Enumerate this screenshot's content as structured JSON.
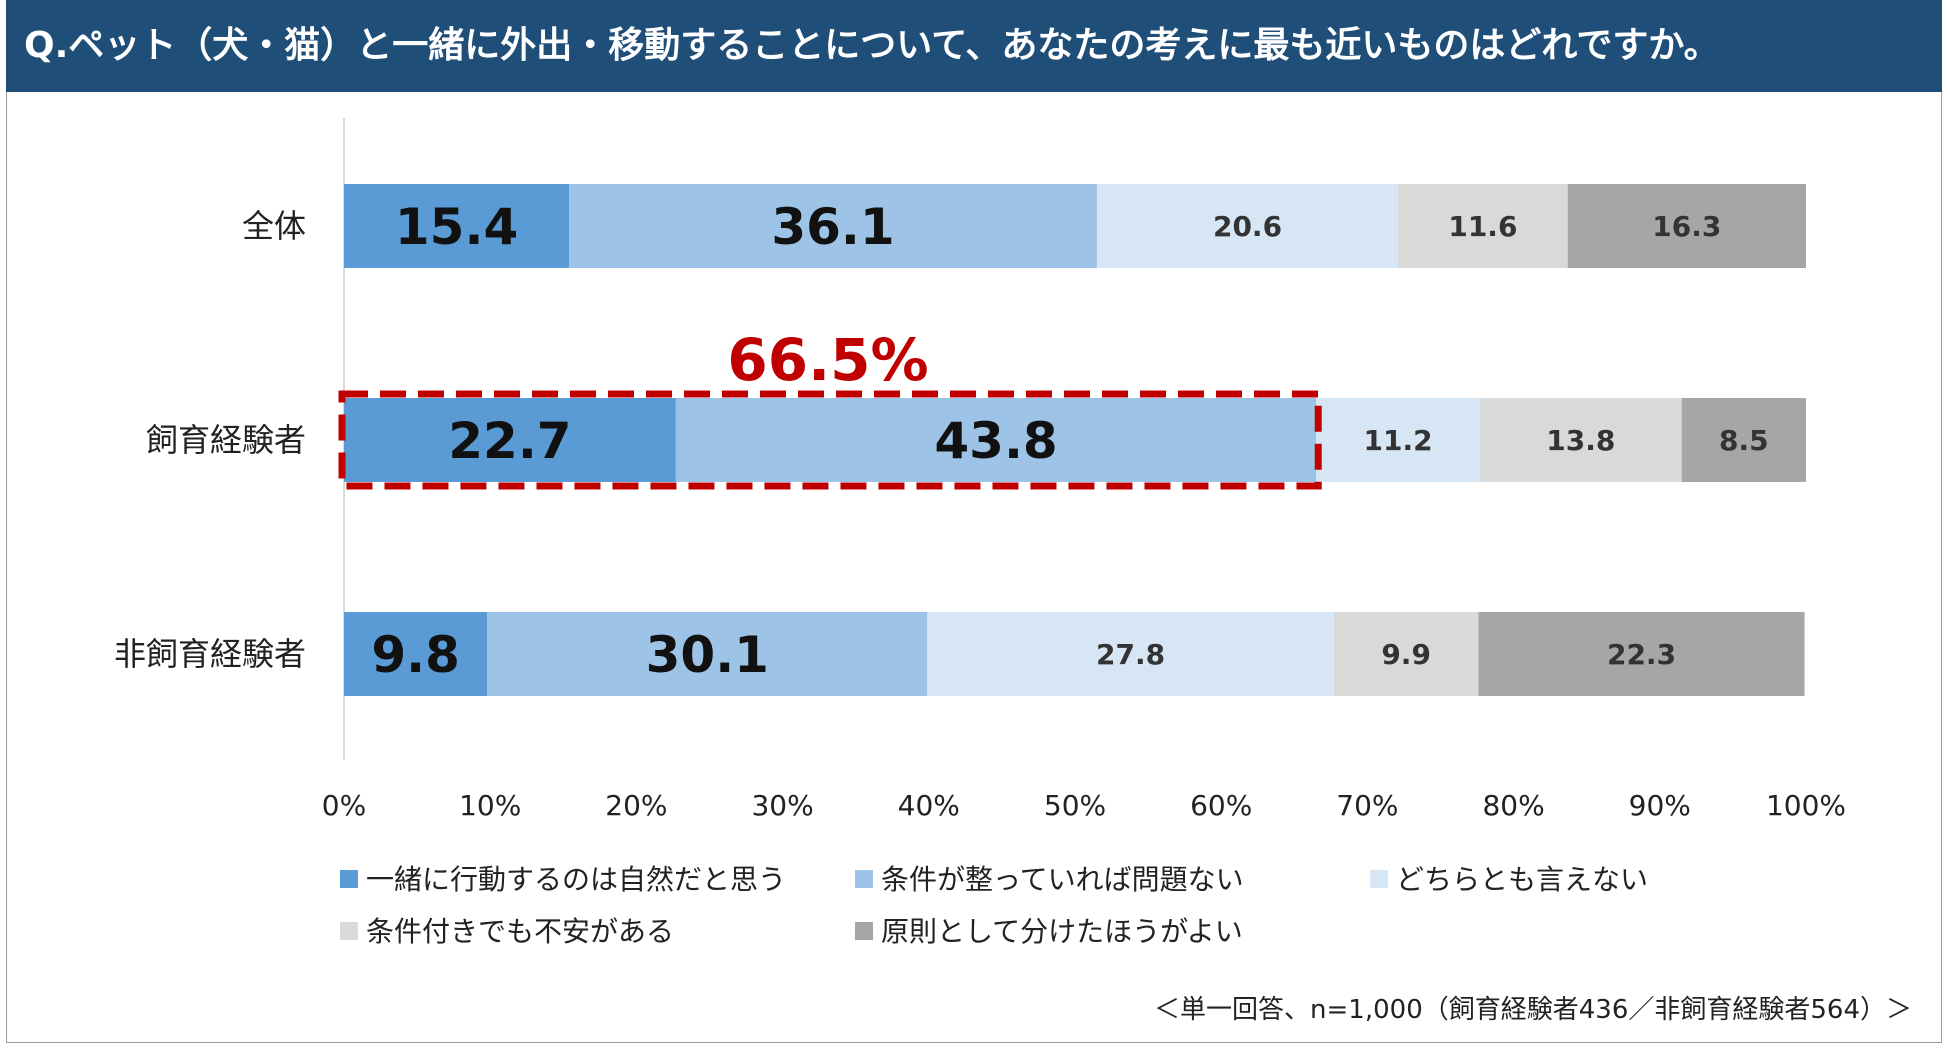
{
  "header": {
    "title": "Q.ペット（犬・猫）と一緒に外出・移動することについて、あなたの考えに最も近いものはどれですか。"
  },
  "chart_data": {
    "type": "bar",
    "orientation": "horizontal",
    "stacked": "percent",
    "categories": [
      "全体",
      "飼育経験者",
      "非飼育経験者"
    ],
    "series": [
      {
        "name": "一緒に行動するのは自然だと思う",
        "color": "#5b9bd5",
        "values": [
          15.4,
          22.7,
          9.8
        ]
      },
      {
        "name": "条件が整っていれば問題ない",
        "color": "#9dc3e6",
        "values": [
          36.1,
          43.8,
          30.1
        ]
      },
      {
        "name": "どちらとも言えない",
        "color": "#d6e6f4",
        "values": [
          20.6,
          11.2,
          27.8
        ]
      },
      {
        "name": "条件付きでも不安がある",
        "color": "#d9d9d9",
        "values": [
          11.6,
          13.8,
          9.9
        ]
      },
      {
        "name": "原則として分けたほうがよい",
        "color": "#a6a6a6",
        "values": [
          16.3,
          8.5,
          22.3
        ]
      }
    ],
    "xlim": [
      0,
      100
    ],
    "xticks": [
      "0%",
      "10%",
      "20%",
      "30%",
      "40%",
      "50%",
      "60%",
      "70%",
      "80%",
      "90%",
      "100%"
    ],
    "annotation": {
      "text": "66.5%",
      "category": "飼育経験者",
      "covers_series": [
        0,
        1
      ],
      "color": "#c00000"
    },
    "legend": "bottom"
  },
  "footnote": "＜単一回答、n=1,000（飼育経験者436／非飼育経験者564）＞"
}
